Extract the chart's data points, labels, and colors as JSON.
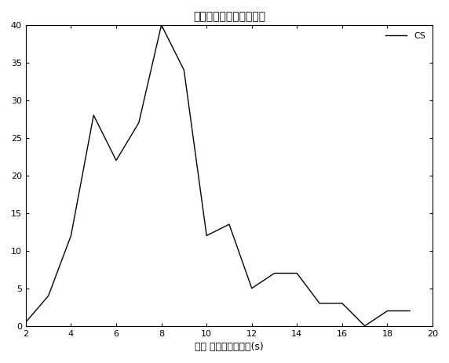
{
  "title": "平均（再饱和持续时间）",
  "xlabel": "平均 再饱和持续时间(s)",
  "xlim": [
    2,
    20
  ],
  "ylim": [
    0,
    40
  ],
  "xticks": [
    2,
    4,
    6,
    8,
    10,
    12,
    14,
    16,
    18,
    20
  ],
  "yticks": [
    0,
    5,
    10,
    15,
    20,
    25,
    30,
    35,
    40
  ],
  "legend_label": "CS",
  "x": [
    2,
    3,
    4,
    5,
    6,
    7,
    8,
    9,
    10,
    11,
    12,
    13,
    14,
    15,
    16,
    17,
    18,
    19
  ],
  "y": [
    0.5,
    4,
    12,
    28,
    22,
    27,
    40,
    34,
    12,
    13.5,
    5,
    7,
    7,
    3,
    3,
    0,
    2,
    2
  ],
  "line_color": "#000000",
  "background_color": "#ffffff",
  "title_fontsize": 10,
  "label_fontsize": 9,
  "tick_fontsize": 8,
  "legend_fontsize": 8
}
